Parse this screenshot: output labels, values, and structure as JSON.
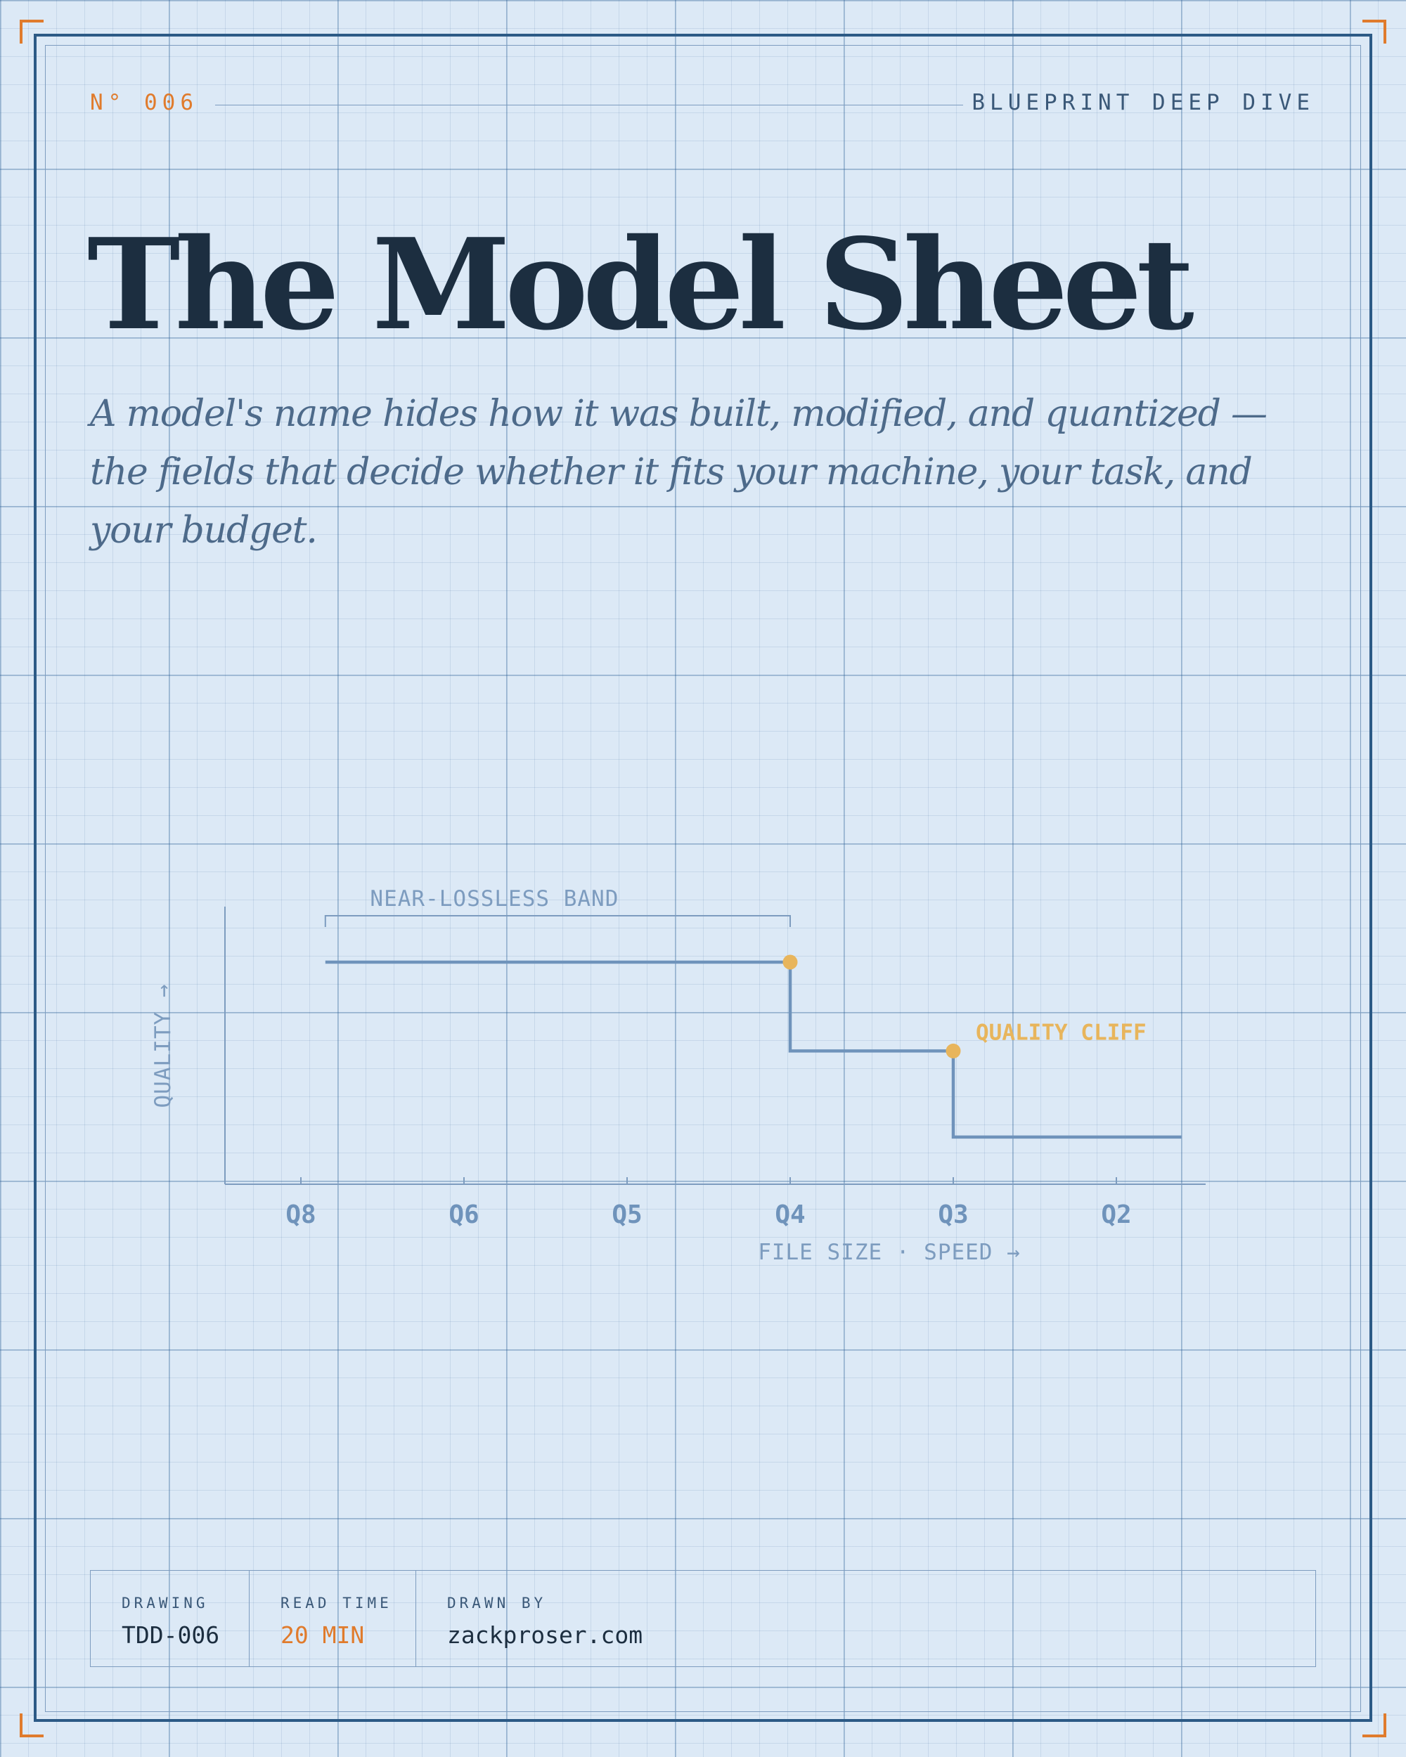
{
  "header": {
    "number": "N° 006",
    "kicker": "BLUEPRINT DEEP DIVE"
  },
  "title": "The Model Sheet",
  "subtitle": "A model's name hides how it was built, modified, and quantized — the fields that decide whether it fits your machine, your task, and your budget.",
  "diagram": {
    "type": "step",
    "band_label": "NEAR-LOSSLESS BAND",
    "cliff_label": "QUALITY CLIFF",
    "y_axis_label": "QUALITY →",
    "x_axis_label": "FILE SIZE · SPEED →",
    "ticks": [
      "Q8",
      "Q6",
      "Q5",
      "Q4",
      "Q3",
      "Q2"
    ],
    "levels": [
      {
        "from": 7.7,
        "to": 4.0,
        "quality": 0.8
      },
      {
        "from": 4.0,
        "to": 3.0,
        "quality": 0.48
      },
      {
        "from": 3.0,
        "to": 1.6,
        "quality": 0.17
      }
    ],
    "band": {
      "from": 7.7,
      "to": 4.0
    },
    "markers": [
      4.0,
      3.0
    ],
    "colors": {
      "line": "#6f93bb",
      "axis": "#7d9cbf",
      "marker": "#e8b55c",
      "text": "#7d9cbf",
      "cliff": "#e8b55c"
    }
  },
  "info": {
    "drawing_label": "DRAWING",
    "drawing_value": "TDD-006",
    "read_time_label": "READ TIME",
    "read_time_value": "20 MIN",
    "drawn_by_label": "DRAWN BY",
    "drawn_by_value": "zackproser.com"
  }
}
